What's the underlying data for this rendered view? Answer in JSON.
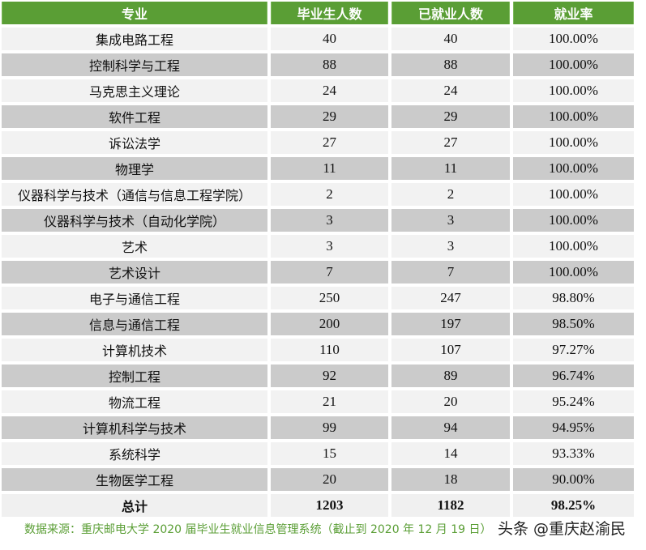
{
  "table": {
    "headers": [
      "专业",
      "毕业生人数",
      "已就业人数",
      "就业率"
    ],
    "rows": [
      {
        "major": "集成电路工程",
        "graduates": "40",
        "employed": "40",
        "rate": "100.00%"
      },
      {
        "major": "控制科学与工程",
        "graduates": "88",
        "employed": "88",
        "rate": "100.00%"
      },
      {
        "major": "马克思主义理论",
        "graduates": "24",
        "employed": "24",
        "rate": "100.00%"
      },
      {
        "major": "软件工程",
        "graduates": "29",
        "employed": "29",
        "rate": "100.00%"
      },
      {
        "major": "诉讼法学",
        "graduates": "27",
        "employed": "27",
        "rate": "100.00%"
      },
      {
        "major": "物理学",
        "graduates": "11",
        "employed": "11",
        "rate": "100.00%"
      },
      {
        "major": "仪器科学与技术（通信与信息工程学院）",
        "graduates": "2",
        "employed": "2",
        "rate": "100.00%"
      },
      {
        "major": "仪器科学与技术（自动化学院）",
        "graduates": "3",
        "employed": "3",
        "rate": "100.00%"
      },
      {
        "major": "艺术",
        "graduates": "3",
        "employed": "3",
        "rate": "100.00%"
      },
      {
        "major": "艺术设计",
        "graduates": "7",
        "employed": "7",
        "rate": "100.00%"
      },
      {
        "major": "电子与通信工程",
        "graduates": "250",
        "employed": "247",
        "rate": "98.80%"
      },
      {
        "major": "信息与通信工程",
        "graduates": "200",
        "employed": "197",
        "rate": "98.50%"
      },
      {
        "major": "计算机技术",
        "graduates": "110",
        "employed": "107",
        "rate": "97.27%"
      },
      {
        "major": "控制工程",
        "graduates": "92",
        "employed": "89",
        "rate": "96.74%"
      },
      {
        "major": "物流工程",
        "graduates": "21",
        "employed": "20",
        "rate": "95.24%"
      },
      {
        "major": "计算机科学与技术",
        "graduates": "99",
        "employed": "94",
        "rate": "94.95%"
      },
      {
        "major": "系统科学",
        "graduates": "15",
        "employed": "14",
        "rate": "93.33%"
      },
      {
        "major": "生物医学工程",
        "graduates": "20",
        "employed": "18",
        "rate": "90.00%"
      }
    ],
    "total": {
      "label": "总计",
      "graduates": "1203",
      "employed": "1182",
      "rate": "98.25%"
    }
  },
  "footer": {
    "source": "数据来源：重庆邮电大学 2020 届毕业生就业信息管理系统（截止到 2020 年 12 月 19 日）",
    "watermark": "头条 @重庆赵渝民"
  },
  "colors": {
    "header_bg": "#5a9e35",
    "row_light": "#f2f2f2",
    "row_dark": "#cbcbcb",
    "footer_text": "#5a9e35"
  }
}
